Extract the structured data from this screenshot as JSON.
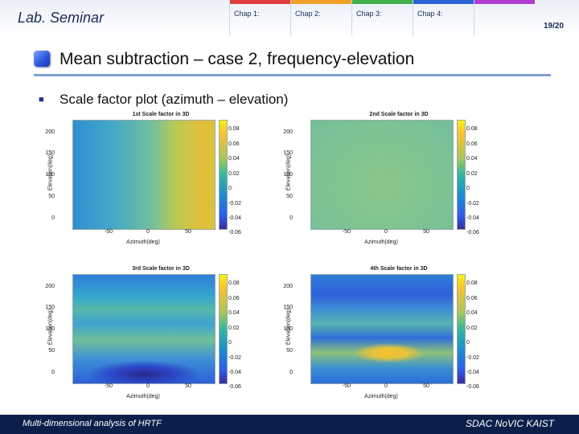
{
  "header": {
    "lab_title": "Lab. Seminar",
    "chapters": [
      {
        "label": "Chap 1:",
        "color": "#e23b3b"
      },
      {
        "label": "Chap 2:",
        "color": "#f2a02a"
      },
      {
        "label": "Chap 3:",
        "color": "#3fb04a"
      },
      {
        "label": "Chap 4:",
        "color": "#2a62d6"
      },
      {
        "label": "",
        "color": "#b13bd1"
      }
    ],
    "page_number": "19/20"
  },
  "slide": {
    "title": "Mean subtraction – case 2, frequency-elevation",
    "bullet_icon": "square-bullet",
    "subtitle": "Scale factor plot (azimuth – elevation)"
  },
  "plots": [
    {
      "title": "1st Scale factor in 3D",
      "xlabel": "Azimuth(deg)",
      "ylabel": "Elevation(deg)",
      "yticks": [
        "200",
        "150",
        "100",
        "50",
        "0"
      ],
      "xticks": [
        "-50",
        "0",
        "50"
      ],
      "cbar_ticks": [
        "0.08",
        "0.06",
        "0.04",
        "0.02",
        "0",
        "-0.02",
        "-0.04",
        "-0.06"
      ]
    },
    {
      "title": "2nd Scale factor in 3D",
      "xlabel": "Azimuth(deg)",
      "ylabel": "Elevation(deg)",
      "yticks": [
        "200",
        "150",
        "100",
        "50",
        "0"
      ],
      "xticks": [
        "-50",
        "0",
        "50"
      ],
      "cbar_ticks": [
        "0.08",
        "0.06",
        "0.04",
        "0.02",
        "0",
        "-0.02",
        "-0.04",
        "-0.06"
      ]
    },
    {
      "title": "3rd Scale factor in 3D",
      "xlabel": "Azimuth(deg)",
      "ylabel": "Elevation(deg)",
      "yticks": [
        "200",
        "150",
        "100",
        "50",
        "0"
      ],
      "xticks": [
        "-50",
        "0",
        "50"
      ],
      "cbar_ticks": [
        "0.08",
        "0.06",
        "0.04",
        "0.02",
        "0",
        "-0.02",
        "-0.04",
        "-0.06"
      ]
    },
    {
      "title": "4th Scale factor in 3D",
      "xlabel": "Azimuth(deg)",
      "ylabel": "Elevation(deg)",
      "yticks": [
        "200",
        "150",
        "100",
        "50",
        "0"
      ],
      "xticks": [
        "-50",
        "0",
        "50"
      ],
      "cbar_ticks": [
        "0.08",
        "0.06",
        "0.04",
        "0.02",
        "0",
        "-0.02",
        "-0.04",
        "-0.06"
      ]
    }
  ],
  "footer": {
    "left": "Multi-dimensional analysis of HRTF",
    "right": "SDAC  NoVIC  KAIST"
  }
}
